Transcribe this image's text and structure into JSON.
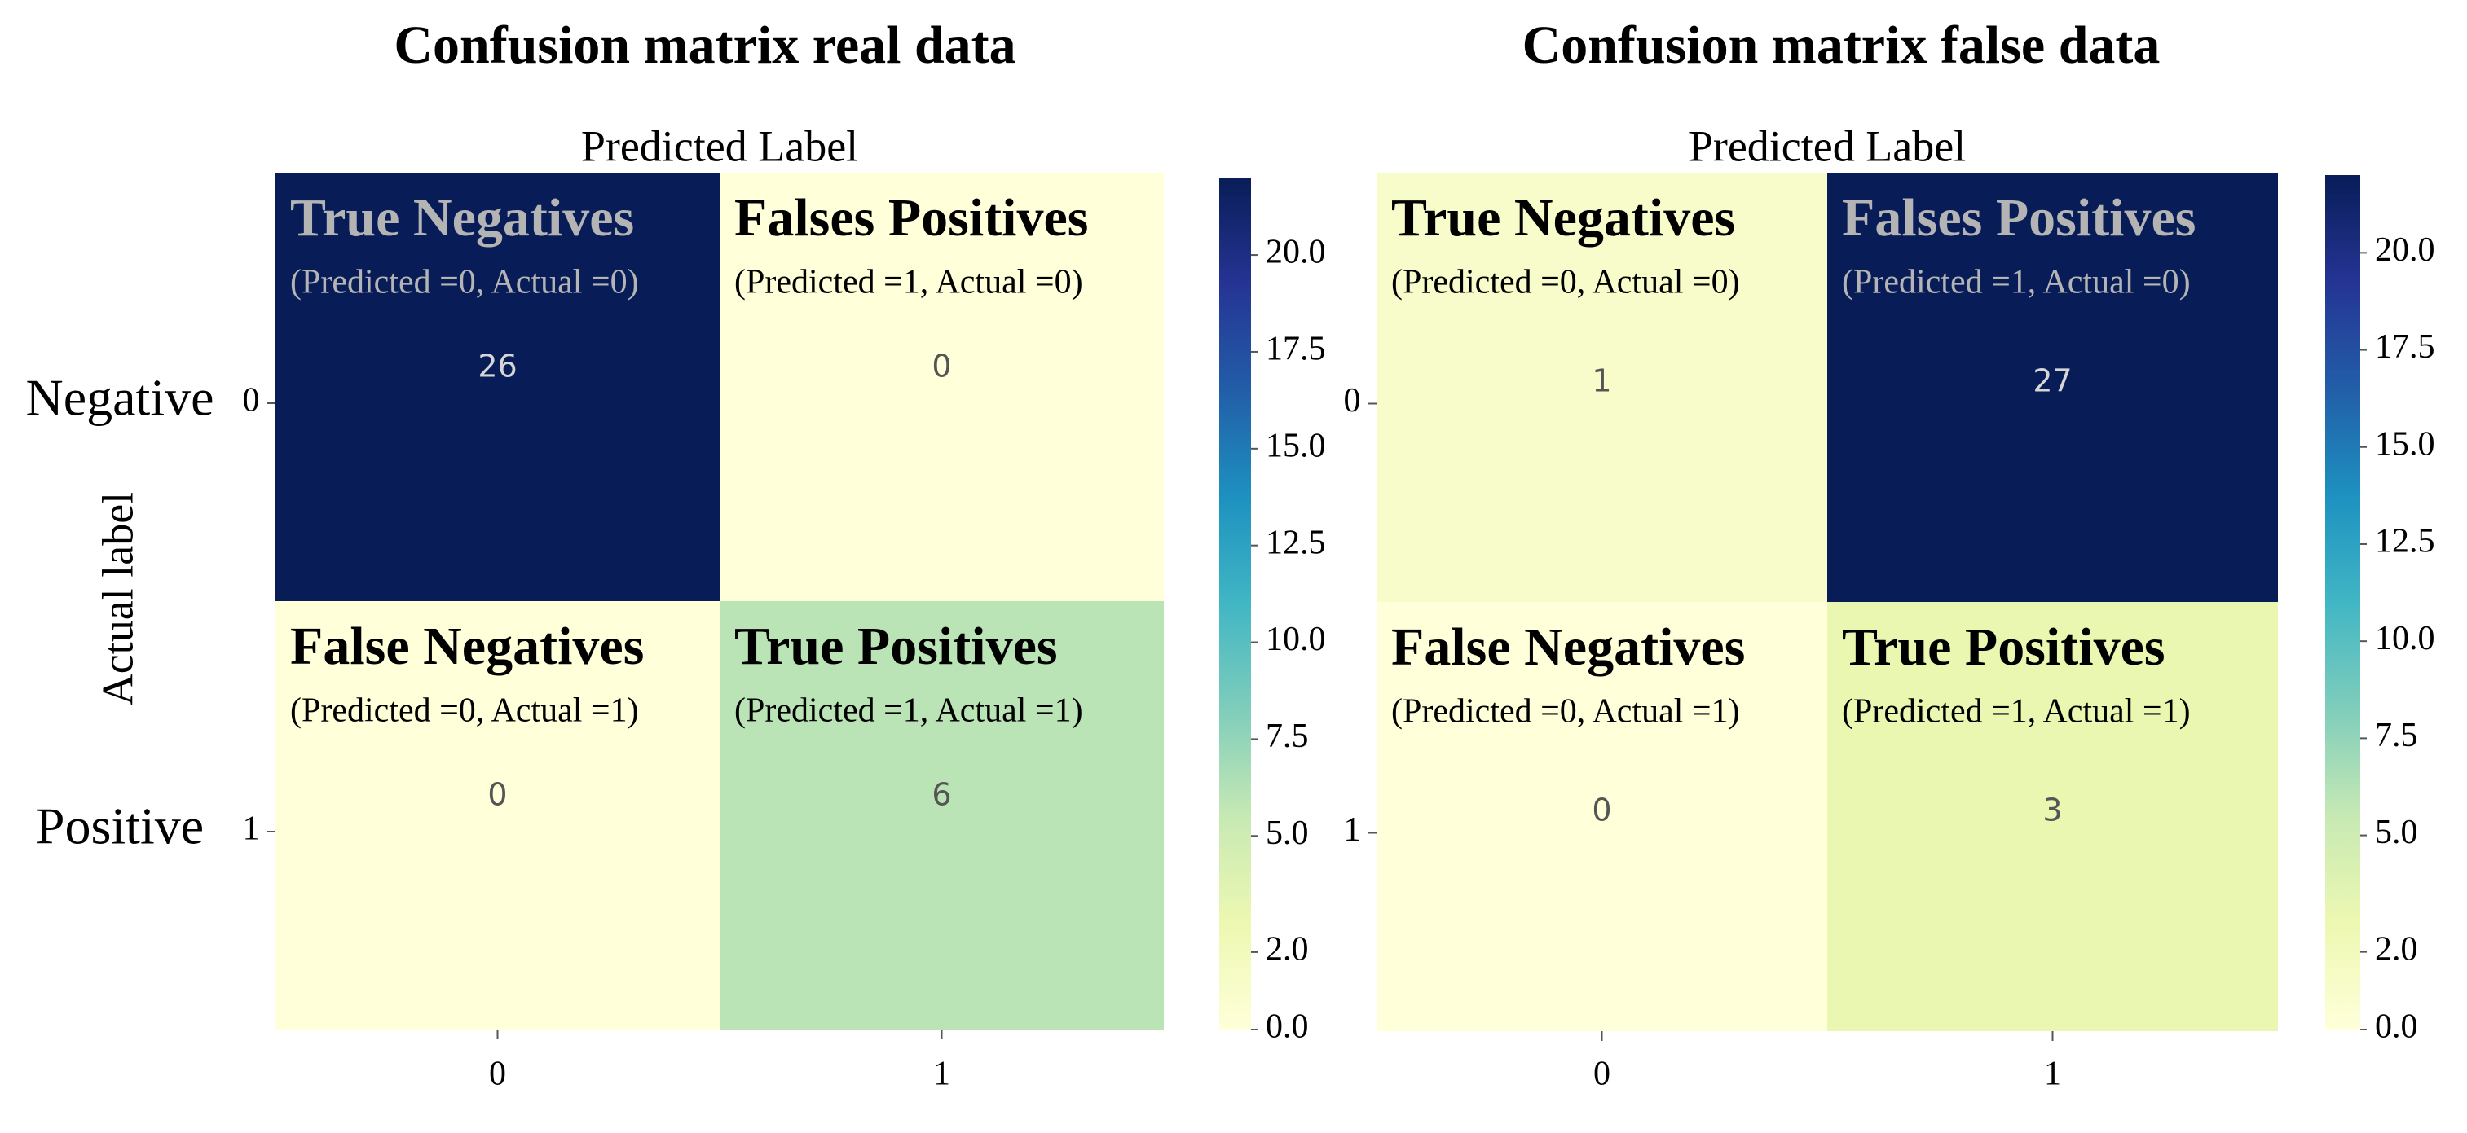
{
  "chart_data": [
    {
      "type": "heatmap",
      "title": "Confusion matrix real data",
      "x_label": "Predicted Label",
      "y_label": "Actual label",
      "row_names": [
        "Negative",
        "Positive"
      ],
      "x_categories": [
        "0",
        "1"
      ],
      "y_categories": [
        "0",
        "1"
      ],
      "cell_titles": [
        [
          "True Negatives",
          "Falses Positives"
        ],
        [
          "False Negatives",
          "True Positives"
        ]
      ],
      "cell_subtitles": [
        [
          "(Predicted =0, Actual =0)",
          "(Predicted =1, Actual =0)"
        ],
        [
          "(Predicted =0, Actual =1)",
          "(Predicted =1, Actual =1)"
        ]
      ],
      "values": [
        [
          26,
          0
        ],
        [
          0,
          6
        ]
      ],
      "colormap": [
        "#ffffd9",
        "#edf8b1",
        "#c7e9b4",
        "#7fcdbb",
        "#41b6c4",
        "#1d91c0",
        "#225ea8",
        "#253494",
        "#081d58"
      ],
      "zlim": [
        0,
        22
      ],
      "colorbar_ticks": [
        {
          "value": 0,
          "label": "0.0"
        },
        {
          "value": 2,
          "label": "2.0"
        },
        {
          "value": 5,
          "label": "5.0"
        },
        {
          "value": 7.5,
          "label": "7.5"
        },
        {
          "value": 10,
          "label": "10.0"
        },
        {
          "value": 12.5,
          "label": "12.5"
        },
        {
          "value": 15,
          "label": "15.0"
        },
        {
          "value": 17.5,
          "label": "17.5"
        },
        {
          "value": 20,
          "label": "20.0"
        }
      ]
    },
    {
      "type": "heatmap",
      "title": "Confusion matrix false data",
      "x_label": "Predicted Label",
      "x_categories": [
        "0",
        "1"
      ],
      "y_categories": [
        "0",
        "1"
      ],
      "cell_titles": [
        [
          "True Negatives",
          "Falses Positives"
        ],
        [
          "False Negatives",
          "True Positives"
        ]
      ],
      "cell_subtitles": [
        [
          "(Predicted =0, Actual =0)",
          "(Predicted =1, Actual =0)"
        ],
        [
          "(Predicted =0, Actual =1)",
          "(Predicted =1, Actual =1)"
        ]
      ],
      "values": [
        [
          1,
          27
        ],
        [
          0,
          3
        ]
      ],
      "colormap": [
        "#ffffd9",
        "#edf8b1",
        "#c7e9b4",
        "#7fcdbb",
        "#41b6c4",
        "#1d91c0",
        "#225ea8",
        "#253494",
        "#081d58"
      ],
      "zlim": [
        0,
        22
      ],
      "colorbar_ticks": [
        {
          "value": 0,
          "label": "0.0"
        },
        {
          "value": 2,
          "label": "2.0"
        },
        {
          "value": 5,
          "label": "5.0"
        },
        {
          "value": 7.5,
          "label": "7.5"
        },
        {
          "value": 10,
          "label": "10.0"
        },
        {
          "value": 12.5,
          "label": "12.5"
        },
        {
          "value": 15,
          "label": "15.0"
        },
        {
          "value": 17.5,
          "label": "17.5"
        },
        {
          "value": 20,
          "label": "20.0"
        }
      ]
    }
  ]
}
